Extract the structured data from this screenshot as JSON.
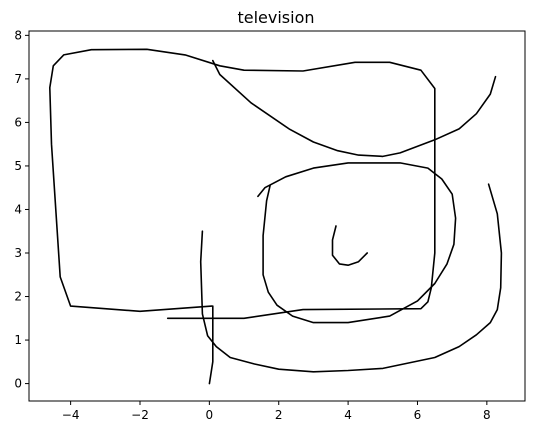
{
  "chart_data": {
    "type": "line",
    "title": "television",
    "xlabel": "",
    "ylabel": "",
    "xlim": [
      -5.2,
      9.1
    ],
    "ylim": [
      -0.4,
      8.1
    ],
    "xticks": [
      -4,
      -2,
      0,
      2,
      4,
      6,
      8
    ],
    "yticks": [
      0,
      1,
      2,
      3,
      4,
      5,
      6,
      7,
      8
    ],
    "tick_labels_x": [
      "−4",
      "−2",
      "0",
      "2",
      "4",
      "6",
      "8"
    ],
    "tick_labels_y": [
      "0",
      "1",
      "2",
      "3",
      "4",
      "5",
      "6",
      "7",
      "8"
    ],
    "grid": false,
    "line_color": "#000000",
    "series": [
      {
        "points": [
          [
            0.07,
            1.78
          ],
          [
            -2.0,
            1.66
          ],
          [
            -4.0,
            1.78
          ],
          [
            -4.3,
            2.45
          ],
          [
            -4.55,
            5.5
          ],
          [
            -4.6,
            6.8
          ],
          [
            -4.5,
            7.3
          ],
          [
            -4.2,
            7.55
          ],
          [
            -3.4,
            7.67
          ],
          [
            -1.8,
            7.68
          ],
          [
            -0.7,
            7.55
          ],
          [
            0.3,
            7.3
          ],
          [
            1.0,
            7.2
          ],
          [
            2.7,
            7.18
          ],
          [
            4.2,
            7.38
          ],
          [
            5.2,
            7.38
          ],
          [
            6.1,
            7.2
          ],
          [
            6.5,
            6.78
          ],
          [
            6.5,
            3.0
          ],
          [
            6.4,
            2.2
          ],
          [
            6.3,
            1.88
          ],
          [
            6.1,
            1.72
          ],
          [
            2.7,
            1.7
          ],
          [
            1.0,
            1.5
          ],
          [
            -1.2,
            1.5
          ]
        ]
      },
      {
        "points": [
          [
            0.1,
            7.42
          ],
          [
            0.3,
            7.1
          ],
          [
            1.2,
            6.45
          ],
          [
            2.3,
            5.85
          ],
          [
            3.0,
            5.55
          ],
          [
            3.7,
            5.35
          ],
          [
            4.3,
            5.25
          ],
          [
            5.0,
            5.22
          ],
          [
            5.5,
            5.3
          ],
          [
            6.5,
            5.6
          ],
          [
            7.2,
            5.85
          ],
          [
            7.7,
            6.2
          ],
          [
            8.1,
            6.65
          ],
          [
            8.25,
            7.05
          ]
        ]
      },
      {
        "points": [
          [
            1.4,
            4.3
          ],
          [
            1.6,
            4.5
          ],
          [
            2.2,
            4.75
          ],
          [
            3.0,
            4.95
          ],
          [
            4.0,
            5.07
          ],
          [
            5.5,
            5.07
          ],
          [
            6.3,
            4.95
          ],
          [
            6.7,
            4.7
          ],
          [
            7.0,
            4.35
          ],
          [
            7.1,
            3.8
          ],
          [
            7.05,
            3.2
          ],
          [
            6.85,
            2.75
          ],
          [
            6.5,
            2.3
          ],
          [
            6.0,
            1.9
          ],
          [
            5.2,
            1.55
          ],
          [
            4.0,
            1.4
          ],
          [
            3.0,
            1.4
          ],
          [
            2.4,
            1.55
          ],
          [
            1.95,
            1.8
          ],
          [
            1.7,
            2.1
          ],
          [
            1.55,
            2.5
          ],
          [
            1.55,
            3.4
          ],
          [
            1.65,
            4.2
          ],
          [
            1.75,
            4.55
          ]
        ]
      },
      {
        "points": [
          [
            3.65,
            3.62
          ],
          [
            3.55,
            3.3
          ],
          [
            3.55,
            2.95
          ],
          [
            3.75,
            2.75
          ],
          [
            4.0,
            2.72
          ],
          [
            4.3,
            2.8
          ],
          [
            4.55,
            3.0
          ]
        ]
      },
      {
        "points": [
          [
            -0.2,
            3.5
          ],
          [
            -0.25,
            2.8
          ],
          [
            -0.2,
            1.6
          ],
          [
            -0.05,
            1.1
          ],
          [
            0.2,
            0.85
          ],
          [
            0.6,
            0.6
          ],
          [
            1.3,
            0.45
          ],
          [
            2.0,
            0.33
          ],
          [
            3.0,
            0.27
          ],
          [
            4.0,
            0.3
          ],
          [
            5.0,
            0.35
          ],
          [
            6.5,
            0.6
          ],
          [
            7.2,
            0.85
          ],
          [
            7.7,
            1.12
          ],
          [
            8.1,
            1.4
          ],
          [
            8.3,
            1.7
          ],
          [
            8.4,
            2.2
          ],
          [
            8.42,
            3.0
          ],
          [
            8.3,
            3.9
          ],
          [
            8.05,
            4.58
          ]
        ]
      },
      {
        "points": [
          [
            0.1,
            1.78
          ],
          [
            0.1,
            0.9
          ],
          [
            0.1,
            0.5
          ],
          [
            0.05,
            0.25
          ],
          [
            0.0,
            0.0
          ]
        ]
      }
    ]
  }
}
